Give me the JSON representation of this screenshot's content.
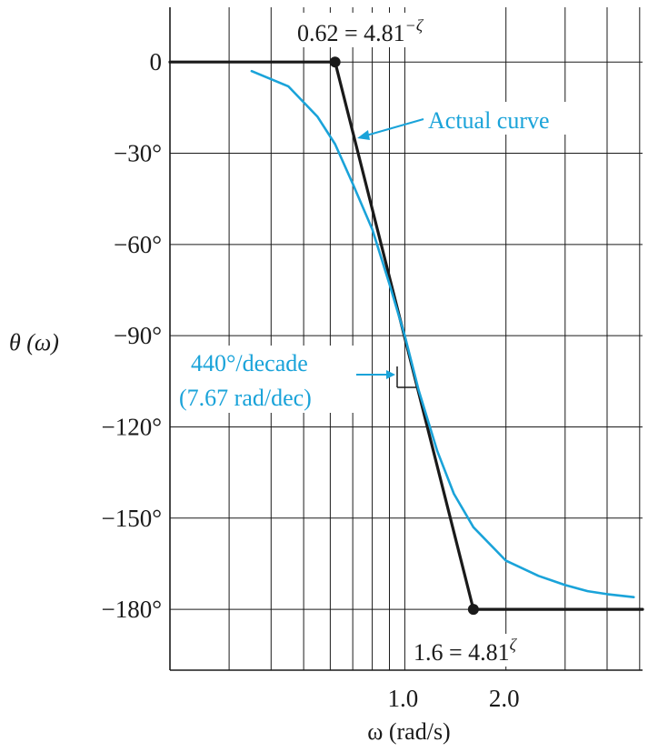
{
  "chart_data": {
    "type": "line",
    "title": "",
    "xlabel": "ω (rad/s)",
    "ylabel": "θ (ω)",
    "x_scale": "log",
    "xlim": [
      0.2,
      5.1
    ],
    "ylim": [
      -200,
      18
    ],
    "grid": true,
    "x_tick_labels": [
      {
        "value": 1.0,
        "label": "1.0"
      },
      {
        "value": 2.0,
        "label": "2.0"
      }
    ],
    "y_tick_labels": [
      {
        "value": 0,
        "label": "0"
      },
      {
        "value": -30,
        "label": "−30°"
      },
      {
        "value": -60,
        "label": "−60°"
      },
      {
        "value": -90,
        "label": "−90°"
      },
      {
        "value": -120,
        "label": "−120°"
      },
      {
        "value": -150,
        "label": "−150°"
      },
      {
        "value": -180,
        "label": "−180°"
      }
    ],
    "series": [
      {
        "name": "",
        "style": "asymptote",
        "color": "#1a1a1a",
        "x": [
          0.2,
          0.62,
          1.6,
          5.1
        ],
        "y": [
          0,
          0,
          -180,
          -180
        ]
      },
      {
        "name": "Actual curve",
        "style": "actual",
        "color": "#1aa3d9",
        "x": [
          0.35,
          0.45,
          0.55,
          0.62,
          0.7,
          0.8,
          0.9,
          1.0,
          1.1,
          1.25,
          1.4,
          1.6,
          2.0,
          2.5,
          3.0,
          3.5,
          4.0,
          4.8
        ],
        "y": [
          -3,
          -8,
          -18,
          -27,
          -40,
          -55,
          -73,
          -90,
          -108,
          -128,
          -142,
          -153,
          -164,
          -169,
          -172,
          -174,
          -175,
          -176
        ]
      }
    ],
    "points": [
      {
        "x": 0.62,
        "y": 0,
        "label": "0.62 = 4.81"
      },
      {
        "x": 1.6,
        "y": -180,
        "label": "1.6 = 4.81"
      }
    ],
    "annotations": {
      "actual_curve": "Actual curve",
      "slope_line1": "440°/decade",
      "slope_line2": "(7.67 rad/dec)",
      "break_low_exponent": "−ζ",
      "break_high_exponent": "ζ"
    }
  }
}
